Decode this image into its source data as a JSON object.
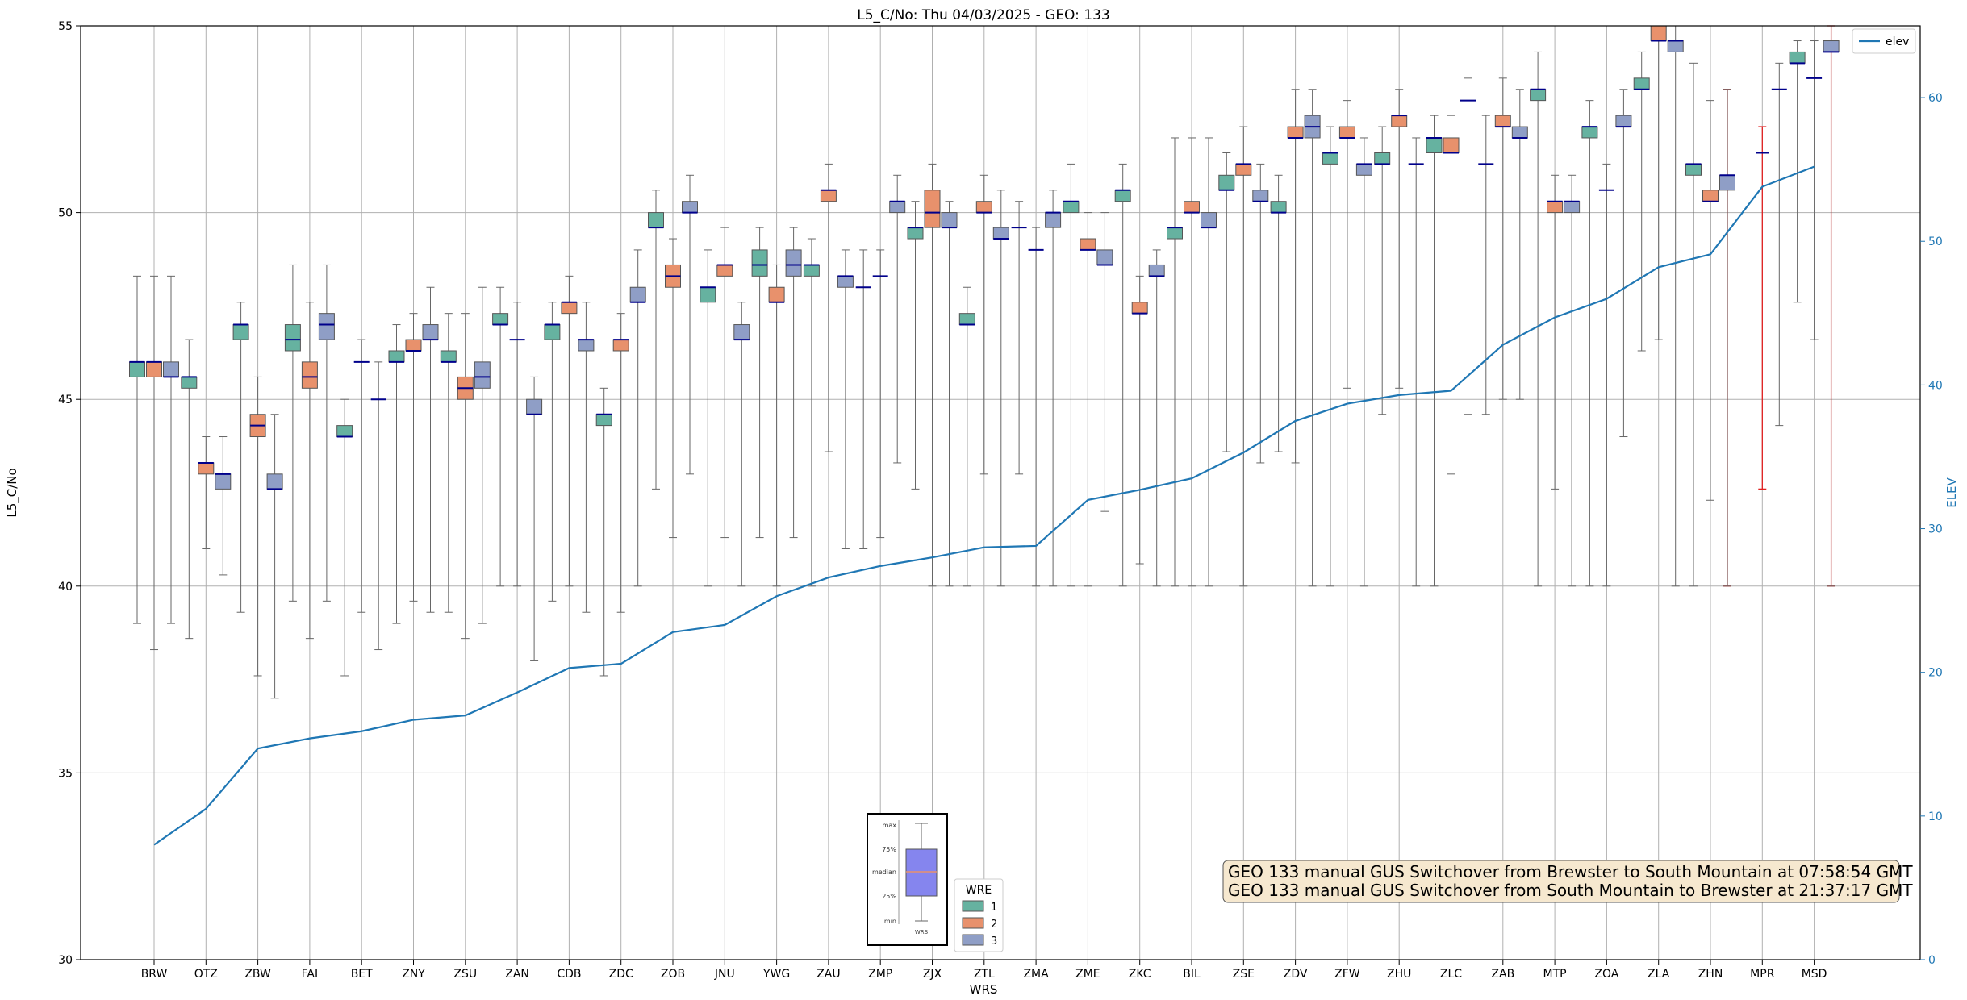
{
  "chart_data": {
    "type": "box",
    "title": "L5_C/No: Thu 04/03/2025 - GEO: 133",
    "xlabel": "WRS",
    "ylabel": "L5_C/No",
    "y2label": "ELEV",
    "ylim": [
      30,
      55
    ],
    "y2lim": [
      0,
      65
    ],
    "yticks": [
      30,
      35,
      40,
      45,
      50,
      55
    ],
    "y2ticks": [
      0,
      10,
      20,
      30,
      40,
      50,
      60
    ],
    "grid": true,
    "categories": [
      "BRW",
      "OTZ",
      "ZBW",
      "FAI",
      "BET",
      "ZNY",
      "ZSU",
      "ZAN",
      "CDB",
      "ZDC",
      "ZOB",
      "JNU",
      "YWG",
      "ZAU",
      "ZMP",
      "ZJX",
      "ZTL",
      "ZMA",
      "ZME",
      "ZKC",
      "BIL",
      "ZSE",
      "ZDV",
      "ZFW",
      "ZHU",
      "ZLC",
      "ZAB",
      "MTP",
      "ZOA",
      "ZLA",
      "ZHN",
      "MPR",
      "MSD"
    ],
    "series_colors": {
      "1": "#66b2a0",
      "2": "#e8916c",
      "3": "#8f9ec6"
    },
    "legend_title": "WRE",
    "legend_entries": [
      "1",
      "2",
      "3"
    ],
    "elev_legend": "elev",
    "elev": [
      8.0,
      10.5,
      14.7,
      15.4,
      15.9,
      16.7,
      17.0,
      18.6,
      20.3,
      20.6,
      22.8,
      23.3,
      25.3,
      26.6,
      27.4,
      28.0,
      28.7,
      28.8,
      32.0,
      32.7,
      33.5,
      35.3,
      37.5,
      38.7,
      39.3,
      39.6,
      42.8,
      44.7,
      46.0,
      48.2,
      49.1,
      53.8,
      55.2
    ],
    "boxes": [
      {
        "cat": "BRW",
        "wre": "1",
        "min": 39.0,
        "q1": 45.6,
        "med": 46.0,
        "q3": 46.0,
        "max": 48.3
      },
      {
        "cat": "BRW",
        "wre": "2",
        "min": 38.3,
        "q1": 45.6,
        "med": 46.0,
        "q3": 46.0,
        "max": 48.3
      },
      {
        "cat": "BRW",
        "wre": "3",
        "min": 39.0,
        "q1": 45.6,
        "med": 45.6,
        "q3": 46.0,
        "max": 48.3
      },
      {
        "cat": "OTZ",
        "wre": "1",
        "min": 38.6,
        "q1": 45.3,
        "med": 45.6,
        "q3": 45.6,
        "max": 46.6
      },
      {
        "cat": "OTZ",
        "wre": "2",
        "min": 41.0,
        "q1": 43.0,
        "med": 43.3,
        "q3": 43.3,
        "max": 44.0
      },
      {
        "cat": "OTZ",
        "wre": "3",
        "min": 40.3,
        "q1": 42.6,
        "med": 43.0,
        "q3": 43.0,
        "max": 44.0
      },
      {
        "cat": "ZBW",
        "wre": "1",
        "min": 39.3,
        "q1": 46.6,
        "med": 47.0,
        "q3": 47.0,
        "max": 47.6
      },
      {
        "cat": "ZBW",
        "wre": "2",
        "min": 37.6,
        "q1": 44.0,
        "med": 44.3,
        "q3": 44.6,
        "max": 45.6
      },
      {
        "cat": "ZBW",
        "wre": "3",
        "min": 37.0,
        "q1": 42.6,
        "med": 42.6,
        "q3": 43.0,
        "max": 44.6
      },
      {
        "cat": "FAI",
        "wre": "1",
        "min": 39.6,
        "q1": 46.3,
        "med": 46.6,
        "q3": 47.0,
        "max": 48.6
      },
      {
        "cat": "FAI",
        "wre": "2",
        "min": 38.6,
        "q1": 45.3,
        "med": 45.6,
        "q3": 46.0,
        "max": 47.6
      },
      {
        "cat": "FAI",
        "wre": "3",
        "min": 39.6,
        "q1": 46.6,
        "med": 47.0,
        "q3": 47.3,
        "max": 48.6
      },
      {
        "cat": "BET",
        "wre": "1",
        "min": 37.6,
        "q1": 44.0,
        "med": 44.0,
        "q3": 44.3,
        "max": 45.0
      },
      {
        "cat": "BET",
        "wre": "2",
        "min": 39.3,
        "q1": 46.0,
        "med": 46.0,
        "q3": 46.0,
        "max": 46.6
      },
      {
        "cat": "BET",
        "wre": "3",
        "min": 38.3,
        "q1": 45.0,
        "med": 45.0,
        "q3": 45.0,
        "max": 46.0
      },
      {
        "cat": "ZNY",
        "wre": "1",
        "min": 39.0,
        "q1": 46.0,
        "med": 46.0,
        "q3": 46.3,
        "max": 47.0
      },
      {
        "cat": "ZNY",
        "wre": "2",
        "min": 39.6,
        "q1": 46.3,
        "med": 46.3,
        "q3": 46.6,
        "max": 47.3
      },
      {
        "cat": "ZNY",
        "wre": "3",
        "min": 39.3,
        "q1": 46.6,
        "med": 46.6,
        "q3": 47.0,
        "max": 48.0
      },
      {
        "cat": "ZSU",
        "wre": "1",
        "min": 39.3,
        "q1": 46.0,
        "med": 46.0,
        "q3": 46.3,
        "max": 47.3
      },
      {
        "cat": "ZSU",
        "wre": "2",
        "min": 38.6,
        "q1": 45.0,
        "med": 45.3,
        "q3": 45.6,
        "max": 47.3
      },
      {
        "cat": "ZSU",
        "wre": "3",
        "min": 39.0,
        "q1": 45.3,
        "med": 45.6,
        "q3": 46.0,
        "max": 48.0
      },
      {
        "cat": "ZAN",
        "wre": "1",
        "min": 40.0,
        "q1": 47.0,
        "med": 47.0,
        "q3": 47.3,
        "max": 48.0
      },
      {
        "cat": "ZAN",
        "wre": "2",
        "min": 40.0,
        "q1": 46.6,
        "med": 46.6,
        "q3": 46.6,
        "max": 47.6
      },
      {
        "cat": "ZAN",
        "wre": "3",
        "min": 38.0,
        "q1": 44.6,
        "med": 44.6,
        "q3": 45.0,
        "max": 45.6
      },
      {
        "cat": "CDB",
        "wre": "1",
        "min": 39.6,
        "q1": 46.6,
        "med": 47.0,
        "q3": 47.0,
        "max": 47.6
      },
      {
        "cat": "CDB",
        "wre": "2",
        "min": 40.0,
        "q1": 47.3,
        "med": 47.6,
        "q3": 47.6,
        "max": 48.3
      },
      {
        "cat": "CDB",
        "wre": "3",
        "min": 39.3,
        "q1": 46.3,
        "med": 46.6,
        "q3": 46.6,
        "max": 47.6
      },
      {
        "cat": "ZDC",
        "wre": "1",
        "min": 37.6,
        "q1": 44.3,
        "med": 44.6,
        "q3": 44.6,
        "max": 45.3
      },
      {
        "cat": "ZDC",
        "wre": "2",
        "min": 39.3,
        "q1": 46.3,
        "med": 46.6,
        "q3": 46.6,
        "max": 47.3
      },
      {
        "cat": "ZDC",
        "wre": "3",
        "min": 40.0,
        "q1": 47.6,
        "med": 47.6,
        "q3": 48.0,
        "max": 49.0
      },
      {
        "cat": "ZOB",
        "wre": "1",
        "min": 42.6,
        "q1": 49.6,
        "med": 49.6,
        "q3": 50.0,
        "max": 50.6
      },
      {
        "cat": "ZOB",
        "wre": "2",
        "min": 41.3,
        "q1": 48.0,
        "med": 48.3,
        "q3": 48.6,
        "max": 49.3
      },
      {
        "cat": "ZOB",
        "wre": "3",
        "min": 43.0,
        "q1": 50.0,
        "med": 50.0,
        "q3": 50.3,
        "max": 51.0
      },
      {
        "cat": "JNU",
        "wre": "1",
        "min": 40.0,
        "q1": 47.6,
        "med": 48.0,
        "q3": 48.0,
        "max": 49.0
      },
      {
        "cat": "JNU",
        "wre": "2",
        "min": 41.3,
        "q1": 48.3,
        "med": 48.6,
        "q3": 48.6,
        "max": 49.6
      },
      {
        "cat": "JNU",
        "wre": "3",
        "min": 40.0,
        "q1": 46.6,
        "med": 46.6,
        "q3": 47.0,
        "max": 47.6
      },
      {
        "cat": "YWG",
        "wre": "1",
        "min": 41.3,
        "q1": 48.3,
        "med": 48.6,
        "q3": 49.0,
        "max": 49.6
      },
      {
        "cat": "YWG",
        "wre": "2",
        "min": 40.0,
        "q1": 47.6,
        "med": 47.6,
        "q3": 48.0,
        "max": 48.6
      },
      {
        "cat": "YWG",
        "wre": "3",
        "min": 41.3,
        "q1": 48.3,
        "med": 48.6,
        "q3": 49.0,
        "max": 49.6
      },
      {
        "cat": "ZAU",
        "wre": "1",
        "min": 40.0,
        "q1": 48.3,
        "med": 48.6,
        "q3": 48.6,
        "max": 49.3
      },
      {
        "cat": "ZAU",
        "wre": "2",
        "min": 43.6,
        "q1": 50.3,
        "med": 50.6,
        "q3": 50.6,
        "max": 51.3
      },
      {
        "cat": "ZAU",
        "wre": "3",
        "min": 41.0,
        "q1": 48.0,
        "med": 48.3,
        "q3": 48.3,
        "max": 49.0
      },
      {
        "cat": "ZMP",
        "wre": "1",
        "min": 41.0,
        "q1": 48.0,
        "med": 48.0,
        "q3": 48.0,
        "max": 49.0
      },
      {
        "cat": "ZMP",
        "wre": "2",
        "min": 41.3,
        "q1": 48.3,
        "med": 48.3,
        "q3": 48.3,
        "max": 49.0
      },
      {
        "cat": "ZMP",
        "wre": "3",
        "min": 43.3,
        "q1": 50.0,
        "med": 50.3,
        "q3": 50.3,
        "max": 51.0
      },
      {
        "cat": "ZJX",
        "wre": "1",
        "min": 42.6,
        "q1": 49.3,
        "med": 49.6,
        "q3": 49.6,
        "max": 50.3
      },
      {
        "cat": "ZJX",
        "wre": "2",
        "min": 40.0,
        "q1": 49.6,
        "med": 50.0,
        "q3": 50.6,
        "max": 51.3
      },
      {
        "cat": "ZJX",
        "wre": "3",
        "min": 40.0,
        "q1": 49.6,
        "med": 49.6,
        "q3": 50.0,
        "max": 50.3
      },
      {
        "cat": "ZTL",
        "wre": "1",
        "min": 40.0,
        "q1": 47.0,
        "med": 47.0,
        "q3": 47.3,
        "max": 48.0
      },
      {
        "cat": "ZTL",
        "wre": "2",
        "min": 43.0,
        "q1": 50.0,
        "med": 50.0,
        "q3": 50.3,
        "max": 51.0
      },
      {
        "cat": "ZTL",
        "wre": "3",
        "min": 40.0,
        "q1": 49.3,
        "med": 49.3,
        "q3": 49.6,
        "max": 50.6
      },
      {
        "cat": "ZMA",
        "wre": "1",
        "min": 43.0,
        "q1": 49.6,
        "med": 49.6,
        "q3": 49.6,
        "max": 50.3
      },
      {
        "cat": "ZMA",
        "wre": "2",
        "min": 40.0,
        "q1": 49.0,
        "med": 49.0,
        "q3": 49.0,
        "max": 49.6
      },
      {
        "cat": "ZMA",
        "wre": "3",
        "min": 40.0,
        "q1": 49.6,
        "med": 50.0,
        "q3": 50.0,
        "max": 50.6
      },
      {
        "cat": "ZME",
        "wre": "1",
        "min": 40.0,
        "q1": 50.0,
        "med": 50.3,
        "q3": 50.3,
        "max": 51.3
      },
      {
        "cat": "ZME",
        "wre": "2",
        "min": 40.0,
        "q1": 49.0,
        "med": 49.0,
        "q3": 49.3,
        "max": 50.0
      },
      {
        "cat": "ZME",
        "wre": "3",
        "min": 42.0,
        "q1": 48.6,
        "med": 48.6,
        "q3": 49.0,
        "max": 50.0
      },
      {
        "cat": "ZKC",
        "wre": "1",
        "min": 40.0,
        "q1": 50.3,
        "med": 50.6,
        "q3": 50.6,
        "max": 51.3
      },
      {
        "cat": "ZKC",
        "wre": "2",
        "min": 40.6,
        "q1": 47.3,
        "med": 47.3,
        "q3": 47.6,
        "max": 48.3
      },
      {
        "cat": "ZKC",
        "wre": "3",
        "min": 40.0,
        "q1": 48.3,
        "med": 48.3,
        "q3": 48.6,
        "max": 49.0
      },
      {
        "cat": "BIL",
        "wre": "1",
        "min": 40.0,
        "q1": 49.3,
        "med": 49.6,
        "q3": 49.6,
        "max": 52.0
      },
      {
        "cat": "BIL",
        "wre": "2",
        "min": 40.0,
        "q1": 50.0,
        "med": 50.0,
        "q3": 50.3,
        "max": 52.0
      },
      {
        "cat": "BIL",
        "wre": "3",
        "min": 40.0,
        "q1": 49.6,
        "med": 49.6,
        "q3": 50.0,
        "max": 52.0
      },
      {
        "cat": "ZSE",
        "wre": "1",
        "min": 43.6,
        "q1": 50.6,
        "med": 50.6,
        "q3": 51.0,
        "max": 51.6
      },
      {
        "cat": "ZSE",
        "wre": "2",
        "min": 40.0,
        "q1": 51.0,
        "med": 51.3,
        "q3": 51.3,
        "max": 52.3
      },
      {
        "cat": "ZSE",
        "wre": "3",
        "min": 43.3,
        "q1": 50.3,
        "med": 50.3,
        "q3": 50.6,
        "max": 51.3
      },
      {
        "cat": "ZDV",
        "wre": "1",
        "min": 43.6,
        "q1": 50.0,
        "med": 50.0,
        "q3": 50.3,
        "max": 51.0
      },
      {
        "cat": "ZDV",
        "wre": "2",
        "min": 43.3,
        "q1": 52.0,
        "med": 52.0,
        "q3": 52.3,
        "max": 53.3
      },
      {
        "cat": "ZDV",
        "wre": "3",
        "min": 40.0,
        "q1": 52.0,
        "med": 52.3,
        "q3": 52.6,
        "max": 53.3
      },
      {
        "cat": "ZFW",
        "wre": "1",
        "min": 40.0,
        "q1": 51.3,
        "med": 51.6,
        "q3": 51.6,
        "max": 52.3
      },
      {
        "cat": "ZFW",
        "wre": "2",
        "min": 45.3,
        "q1": 52.0,
        "med": 52.0,
        "q3": 52.3,
        "max": 53.0
      },
      {
        "cat": "ZFW",
        "wre": "3",
        "min": 40.0,
        "q1": 51.0,
        "med": 51.3,
        "q3": 51.3,
        "max": 52.0
      },
      {
        "cat": "ZHU",
        "wre": "1",
        "min": 44.6,
        "q1": 51.3,
        "med": 51.3,
        "q3": 51.6,
        "max": 52.3
      },
      {
        "cat": "ZHU",
        "wre": "2",
        "min": 45.3,
        "q1": 52.3,
        "med": 52.6,
        "q3": 52.6,
        "max": 53.3
      },
      {
        "cat": "ZHU",
        "wre": "3",
        "min": 40.0,
        "q1": 51.3,
        "med": 51.3,
        "q3": 51.3,
        "max": 52.0
      },
      {
        "cat": "ZLC",
        "wre": "1",
        "min": 40.0,
        "q1": 51.6,
        "med": 52.0,
        "q3": 52.0,
        "max": 52.6
      },
      {
        "cat": "ZLC",
        "wre": "2",
        "min": 43.0,
        "q1": 51.6,
        "med": 51.6,
        "q3": 52.0,
        "max": 52.6
      },
      {
        "cat": "ZLC",
        "wre": "3",
        "min": 44.6,
        "q1": 53.0,
        "med": 53.0,
        "q3": 53.0,
        "max": 53.6
      },
      {
        "cat": "ZAB",
        "wre": "1",
        "min": 44.6,
        "q1": 51.3,
        "med": 51.3,
        "q3": 51.3,
        "max": 52.6
      },
      {
        "cat": "ZAB",
        "wre": "2",
        "min": 45.0,
        "q1": 52.3,
        "med": 52.3,
        "q3": 52.6,
        "max": 53.6
      },
      {
        "cat": "ZAB",
        "wre": "3",
        "min": 45.0,
        "q1": 52.0,
        "med": 52.0,
        "q3": 52.3,
        "max": 53.3
      },
      {
        "cat": "MTP",
        "wre": "1",
        "min": 40.0,
        "q1": 53.0,
        "med": 53.3,
        "q3": 53.3,
        "max": 54.3
      },
      {
        "cat": "MTP",
        "wre": "2",
        "min": 42.6,
        "q1": 50.0,
        "med": 50.3,
        "q3": 50.3,
        "max": 51.0
      },
      {
        "cat": "MTP",
        "wre": "3",
        "min": 40.0,
        "q1": 50.0,
        "med": 50.3,
        "q3": 50.3,
        "max": 51.0
      },
      {
        "cat": "ZOA",
        "wre": "1",
        "min": 40.0,
        "q1": 52.0,
        "med": 52.3,
        "q3": 52.3,
        "max": 53.0
      },
      {
        "cat": "ZOA",
        "wre": "2",
        "min": 40.0,
        "q1": 50.6,
        "med": 50.6,
        "q3": 50.6,
        "max": 51.3
      },
      {
        "cat": "ZOA",
        "wre": "3",
        "min": 44.0,
        "q1": 52.3,
        "med": 52.3,
        "q3": 52.6,
        "max": 53.3
      },
      {
        "cat": "ZLA",
        "wre": "1",
        "min": 46.3,
        "q1": 53.3,
        "med": 53.3,
        "q3": 53.6,
        "max": 54.3
      },
      {
        "cat": "ZLA",
        "wre": "2",
        "min": 46.6,
        "q1": 54.6,
        "med": 54.6,
        "q3": 55.0,
        "max": 55.0
      },
      {
        "cat": "ZLA",
        "wre": "3",
        "min": 40.0,
        "q1": 54.3,
        "med": 54.6,
        "q3": 54.6,
        "max": 55.0
      },
      {
        "cat": "ZHN",
        "wre": "1",
        "min": 40.0,
        "q1": 51.0,
        "med": 51.3,
        "q3": 51.3,
        "max": 54.0
      },
      {
        "cat": "ZHN",
        "wre": "2",
        "min": 42.3,
        "q1": 50.3,
        "med": 50.3,
        "q3": 50.6,
        "max": 53.0
      },
      {
        "cat": "ZHN",
        "wre": "3",
        "min": 40.0,
        "q1": 50.6,
        "med": 51.0,
        "q3": 51.0,
        "max": 53.3
      },
      {
        "cat": "MPR",
        "wre": "3",
        "min": 44.3,
        "q1": 53.3,
        "med": 53.3,
        "q3": 53.3,
        "max": 54.0
      },
      {
        "cat": "MSD",
        "wre": "1",
        "min": 47.6,
        "q1": 54.0,
        "med": 54.0,
        "q3": 54.3,
        "max": 54.6
      },
      {
        "cat": "MSD",
        "wre": "2",
        "min": 46.6,
        "q1": 53.6,
        "med": 53.6,
        "q3": 53.6,
        "max": 54.6
      },
      {
        "cat": "MSD",
        "wre": "3",
        "min": 40.0,
        "q1": 54.3,
        "med": 54.3,
        "q3": 54.6,
        "max": 55.0
      }
    ],
    "red_lines": [
      {
        "cat": "ZHN",
        "offset": 1,
        "low": 40.0,
        "high": 53.3
      },
      {
        "cat": "MPR",
        "offset": 0,
        "low": 42.6,
        "high": 52.3
      },
      {
        "cat": "MPR",
        "offset": 0,
        "low": 51.6,
        "high": 51.6
      },
      {
        "cat": "MSD",
        "offset": 1,
        "low": 40.0,
        "high": 55.0
      }
    ],
    "annotations": [
      "GEO 133 manual GUS Switchover from Brewster to South Mountain at 07:58:54 GMT",
      "GEO 133 manual GUS Switchover from South Mountain to Brewster at 21:37:17 GMT"
    ],
    "inset_labels": [
      "max",
      "75%",
      "median",
      "25%",
      "min",
      "WRS"
    ]
  }
}
